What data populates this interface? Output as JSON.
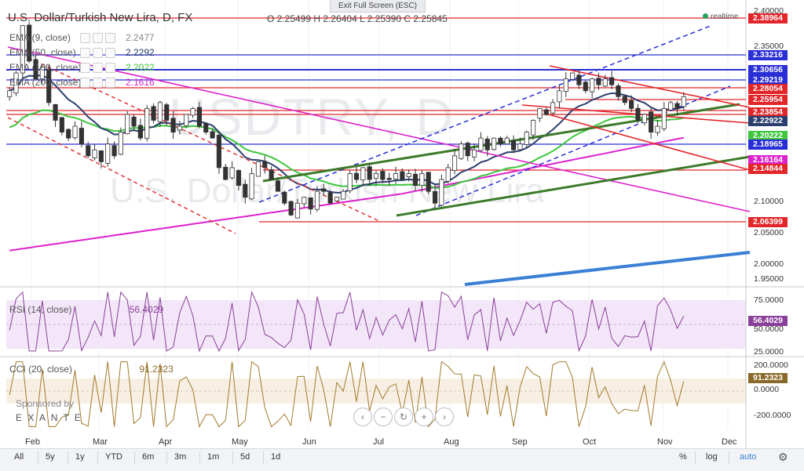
{
  "window": {
    "exit_fullscreen": "Exit Full Screen (ESC)"
  },
  "header": {
    "symbol": "U.S. Dollar/Turkish New Lira, D, FX",
    "ohlc_text": "O 2.25499  H 2.26404  L 2.25390  C 2.25845",
    "realtime": "realtime"
  },
  "watermark": {
    "ticker": "USDTRY, D",
    "name": "U.S. Dollar/Turkish New Lira"
  },
  "indicators": [
    {
      "name": "EMA (9, close)",
      "value": "2.2477",
      "color": "#888888"
    },
    {
      "name": "EMA (50, close)",
      "value": "2.2292",
      "color": "#2b3f6e"
    },
    {
      "name": "EMA (100, close)",
      "value": "2.2022",
      "color": "#3ec63e"
    },
    {
      "name": "EMA (200, close)",
      "value": "2.1616",
      "color": "#dd22cc"
    }
  ],
  "price_tags": [
    {
      "value": "2.38964",
      "color": "#e3262a"
    },
    {
      "value": "2.33216",
      "color": "#2a2ed6"
    },
    {
      "value": "2.30656",
      "color": "#2a2ed6"
    },
    {
      "value": "2.29219",
      "color": "#2a2ed6"
    },
    {
      "value": "2.28054",
      "color": "#e3262a"
    },
    {
      "value": "2.25954",
      "color": "#e3262a"
    },
    {
      "value": "2.23854",
      "color": "#e3262a"
    },
    {
      "value": "2.22922",
      "color": "#2b3f6e"
    },
    {
      "value": "2.20222",
      "color": "#3ec63e"
    },
    {
      "value": "2.18965",
      "color": "#2a2ed6"
    },
    {
      "value": "2.16164",
      "color": "#dd22cc"
    },
    {
      "value": "2.14844",
      "color": "#e3262a"
    },
    {
      "value": "2.06399",
      "color": "#e3262a"
    }
  ],
  "price_axis_labels": [
    "2.40000",
    "2.35000",
    "2.10000",
    "2.05000",
    "2.00000",
    "1.95000"
  ],
  "rsi": {
    "label": "RSI (14, close)",
    "value": "56.4029",
    "axis": [
      "75.0000",
      "50.0000",
      "25.0000"
    ],
    "tag_color": "#8a3f9a"
  },
  "cci": {
    "label": "CCI (20, close)",
    "value": "91.2323",
    "axis": [
      "200.0000",
      "0.0000",
      "-200.0000"
    ],
    "tag_color": "#8a6a2a"
  },
  "sponsor": {
    "line1": "Sponsored by",
    "line2": "E X A N T E"
  },
  "months": [
    "Feb",
    "Mar",
    "Apr",
    "May",
    "Jun",
    "Jul",
    "Aug",
    "Sep",
    "Oct",
    "Nov",
    "Dec"
  ],
  "timeframes": [
    "All",
    "5y",
    "1y",
    "YTD",
    "6m",
    "3m",
    "1m",
    "5d",
    "1d"
  ],
  "bottom_right": {
    "percent": "%",
    "log": "log",
    "auto": "auto"
  },
  "chart_data": {
    "type": "candlestick",
    "title": "U.S. Dollar/Turkish New Lira, D, FX",
    "price_range": [
      1.94,
      2.41
    ],
    "rsi_range": [
      20,
      80
    ],
    "cci_range": [
      -250,
      250
    ],
    "close_series": [
      2.27,
      2.3,
      2.38,
      2.32,
      2.29,
      2.31,
      2.25,
      2.22,
      2.2,
      2.19,
      2.21,
      2.18,
      2.16,
      2.17,
      2.15,
      2.18,
      2.16,
      2.2,
      2.23,
      2.21,
      2.19,
      2.24,
      2.22,
      2.25,
      2.22,
      2.2,
      2.21,
      2.23,
      2.24,
      2.21,
      2.2,
      2.19,
      2.14,
      2.12,
      2.14,
      2.11,
      2.09,
      2.13,
      2.15,
      2.14,
      2.12,
      2.1,
      2.08,
      2.06,
      2.08,
      2.09,
      2.07,
      2.1,
      2.1,
      2.08,
      2.09,
      2.1,
      2.13,
      2.12,
      2.14,
      2.12,
      2.13,
      2.12,
      2.12,
      2.13,
      2.12,
      2.13,
      2.11,
      2.13,
      2.1,
      2.08,
      2.12,
      2.14,
      2.16,
      2.18,
      2.16,
      2.17,
      2.19,
      2.17,
      2.19,
      2.18,
      2.19,
      2.17,
      2.18,
      2.2,
      2.22,
      2.24,
      2.23,
      2.25,
      2.27,
      2.29,
      2.3,
      2.28,
      2.27,
      2.29,
      2.28,
      2.29,
      2.28,
      2.26,
      2.25,
      2.24,
      2.22,
      2.23,
      2.2,
      2.21,
      2.24,
      2.25,
      2.24,
      2.26
    ]
  }
}
